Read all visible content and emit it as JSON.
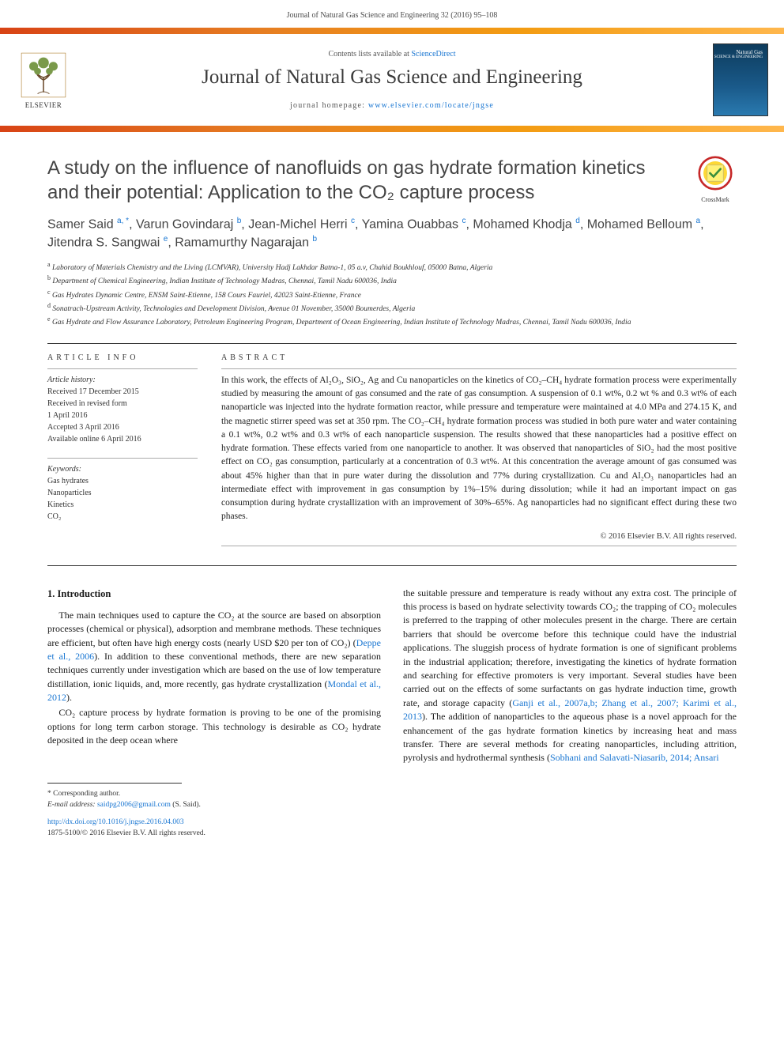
{
  "header": {
    "citation": "Journal of Natural Gas Science and Engineering 32 (2016) 95–108",
    "contents_prefix": "Contents lists available at ",
    "contents_link": "ScienceDirect",
    "journal_title": "Journal of Natural Gas Science and Engineering",
    "homepage_prefix": "journal homepage: ",
    "homepage_url": "www.elsevier.com/locate/jngse",
    "elsevier": "ELSEVIER",
    "cover_line1": "Natural Gas",
    "cover_line2": "SCIENCE & ENGINEERING"
  },
  "crossmark": "CrossMark",
  "title": "A study on the influence of nanofluids on gas hydrate formation kinetics and their potential: Application to the CO₂ capture process",
  "authors_html": "Samer Said <sup>a, *</sup>, Varun Govindaraj <sup>b</sup>, Jean-Michel Herri <sup>c</sup>, Yamina Ouabbas <sup>c</sup>, Mohamed Khodja <sup>d</sup>, Mohamed Belloum <sup>a</sup>, Jitendra S. Sangwai <sup>e</sup>, Ramamurthy Nagarajan <sup>b</sup>",
  "affiliations": [
    {
      "sup": "a",
      "text": "Laboratory of Materials Chemistry and the Living (LCMVAR), University Hadj Lakhdar Batna-1, 05 a.v, Chahid Boukhlouf, 05000 Batna, Algeria"
    },
    {
      "sup": "b",
      "text": "Department of Chemical Engineering, Indian Institute of Technology Madras, Chennai, Tamil Nadu 600036, India"
    },
    {
      "sup": "c",
      "text": "Gas Hydrates Dynamic Centre, ENSM Saint-Etienne, 158 Cours Fauriel, 42023 Saint-Etienne, France"
    },
    {
      "sup": "d",
      "text": "Sonatrach-Upstream Activity, Technologies and Development Division, Avenue 01 November, 35000 Boumerdes, Algeria"
    },
    {
      "sup": "e",
      "text": "Gas Hydrate and Flow Assurance Laboratory, Petroleum Engineering Program, Department of Ocean Engineering, Indian Institute of Technology Madras, Chennai, Tamil Nadu 600036, India"
    }
  ],
  "info": {
    "section_label": "ARTICLE INFO",
    "history_label": "Article history:",
    "history": [
      "Received 17 December 2015",
      "Received in revised form",
      "1 April 2016",
      "Accepted 3 April 2016",
      "Available online 6 April 2016"
    ],
    "keywords_label": "Keywords:",
    "keywords": [
      "Gas hydrates",
      "Nanoparticles",
      "Kinetics",
      "CO₂"
    ]
  },
  "abstract": {
    "section_label": "ABSTRACT",
    "text": "In this work, the effects of Al₂O₃, SiO₂, Ag and Cu nanoparticles on the kinetics of CO₂–CH₄ hydrate formation process were experimentally studied by measuring the amount of gas consumed and the rate of gas consumption. A suspension of 0.1 wt%, 0.2 wt % and 0.3 wt% of each nanoparticle was injected into the hydrate formation reactor, while pressure and temperature were maintained at 4.0 MPa and 274.15 K, and the magnetic stirrer speed was set at 350 rpm. The CO₂–CH₄ hydrate formation process was studied in both pure water and water containing a 0.1 wt%, 0.2 wt% and 0.3 wt% of each nanoparticle suspension. The results showed that these nanoparticles had a positive effect on hydrate formation. These effects varied from one nanoparticle to another. It was observed that nanoparticles of SiO₂ had the most positive effect on CO₂ gas consumption, particularly at a concentration of 0.3 wt%. At this concentration the average amount of gas consumed was about 45% higher than that in pure water during the dissolution and 77% during crystallization. Cu and Al₂O₃ nanoparticles had an intermediate effect with improvement in gas consumption by 1%–15% during dissolution; while it had an important impact on gas consumption during hydrate crystallization with an improvement of 30%–65%. Ag nanoparticles had no significant effect during these two phases.",
    "copyright": "© 2016 Elsevier B.V. All rights reserved."
  },
  "body": {
    "heading": "1. Introduction",
    "p1": "The main techniques used to capture the CO₂ at the source are based on absorption processes (chemical or physical), adsorption and membrane methods. These techniques are efficient, but often have high energy costs (nearly USD $20 per ton of CO₂) (",
    "c1": "Deppe et al., 2006",
    "p1b": "). In addition to these conventional methods, there are new separation techniques currently under investigation which are based on the use of low temperature distillation, ionic liquids, and, more recently, gas hydrate crystallization (",
    "c2": "Mondal et al., 2012",
    "p1c": ").",
    "p2": "CO₂ capture process by hydrate formation is proving to be one of the promising options for long term carbon storage. This technology is desirable as CO₂ hydrate deposited in the deep ocean where",
    "p3a": "the suitable pressure and temperature is ready without any extra cost. The principle of this process is based on hydrate selectivity towards CO₂; the trapping of CO₂ molecules is preferred to the trapping of other molecules present in the charge. There are certain barriers that should be overcome before this technique could have the industrial applications. The sluggish process of hydrate formation is one of significant problems in the industrial application; therefore, investigating the kinetics of hydrate formation and searching for effective promoters is very important. Several studies have been carried out on the effects of some surfactants on gas hydrate induction time, growth rate, and storage capacity (",
    "c3": "Ganji et al., 2007a,b; Zhang et al., 2007; Karimi et al., 2013",
    "p3b": "). The addition of nanoparticles to the aqueous phase is a novel approach for the enhancement of the gas hydrate formation kinetics by increasing heat and mass transfer. There are several methods for creating nanoparticles, including attrition, pyrolysis and hydrothermal synthesis (",
    "c4": "Sobhani and Salavati-Niasarib, 2014; Ansari",
    "p3c": ""
  },
  "footer": {
    "corresponding": "* Corresponding author.",
    "email_label": "E-mail address: ",
    "email": "saidpg2006@gmail.com",
    "email_suffix": " (S. Said).",
    "doi": "http://dx.doi.org/10.1016/j.jngse.2016.04.003",
    "issn": "1875-5100/© 2016 Elsevier B.V. All rights reserved."
  },
  "colors": {
    "link": "#1976d2",
    "orange_left": "#d84315",
    "orange_right": "#ffb74d"
  }
}
